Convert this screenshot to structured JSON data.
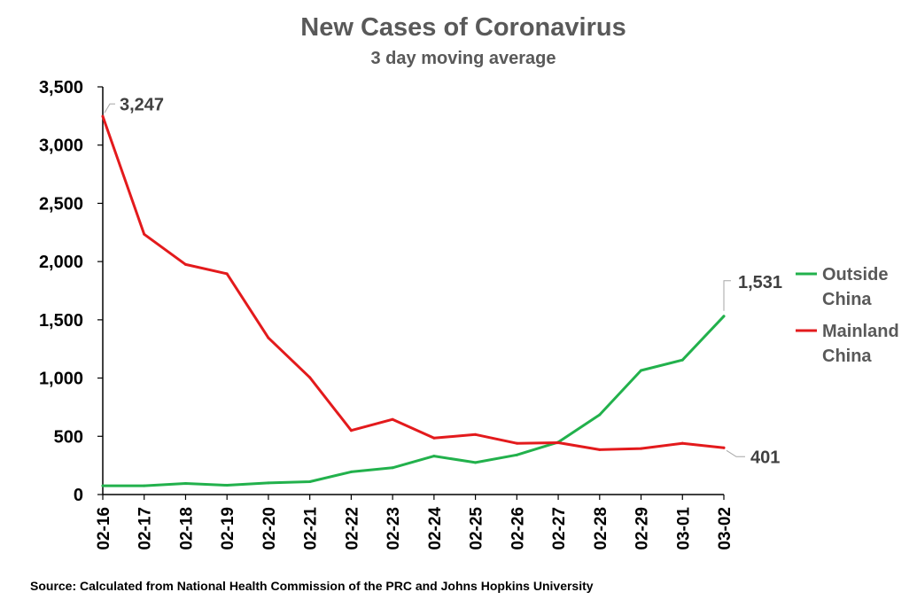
{
  "chart_data": {
    "type": "line",
    "title": "New Cases of Coronavirus",
    "subtitle": "3 day moving average",
    "xlabel": "",
    "ylabel": "",
    "x": [
      "02-16",
      "02-17",
      "02-18",
      "02-19",
      "02-20",
      "02-21",
      "02-22",
      "02-23",
      "02-24",
      "02-25",
      "02-26",
      "02-27",
      "02-28",
      "02-29",
      "03-01",
      "03-02"
    ],
    "ylim": [
      0,
      3500
    ],
    "yticks": [
      "0",
      "500",
      "1,000",
      "1,500",
      "2,000",
      "2,500",
      "3,000",
      "3,500"
    ],
    "grid": false,
    "legend_position": "right",
    "series": [
      {
        "name": "Outside China",
        "name_lines": [
          "Outside",
          "China"
        ],
        "color": "#22b14c",
        "values": [
          75,
          75,
          95,
          80,
          100,
          110,
          195,
          230,
          330,
          275,
          340,
          450,
          685,
          1065,
          1155,
          1531
        ],
        "end_label": "1,531"
      },
      {
        "name": "Mainland China",
        "name_lines": [
          "Mainland",
          "China"
        ],
        "color": "#e31a1c",
        "values": [
          3247,
          2235,
          1975,
          1895,
          1345,
          1005,
          550,
          645,
          485,
          515,
          440,
          445,
          385,
          395,
          440,
          401
        ],
        "start_label": "3,247",
        "end_label": "401"
      }
    ],
    "source": "Source: Calculated from National Health Commission of the PRC and Johns Hopkins University"
  }
}
